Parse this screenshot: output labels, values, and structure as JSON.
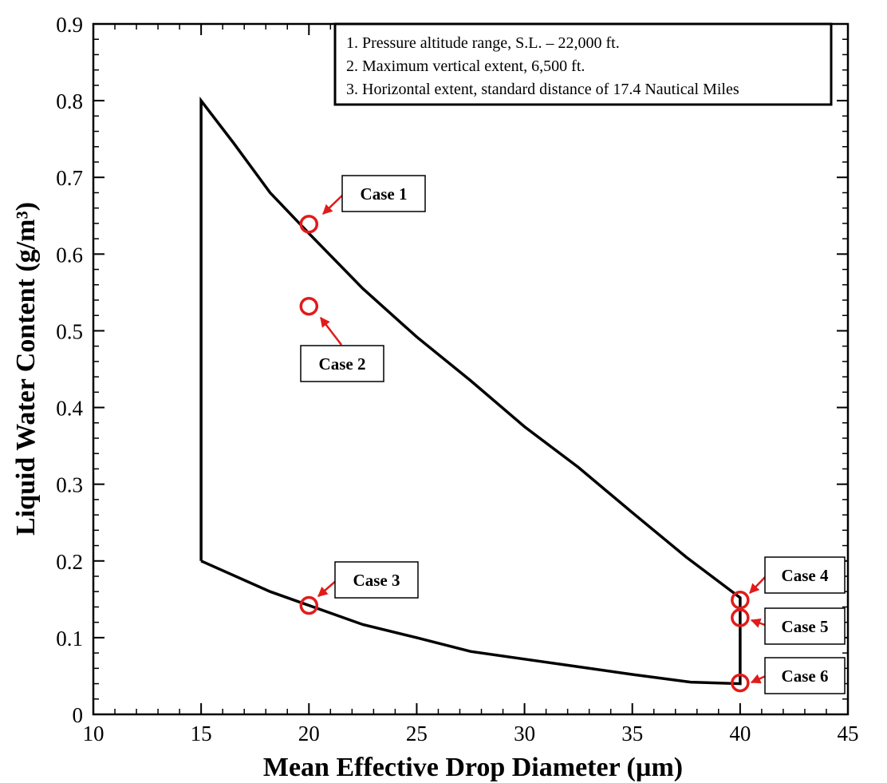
{
  "colors": {
    "line": "#000000",
    "marker": "#e11b1b",
    "arrow": "#e11b1b",
    "background": "#ffffff"
  },
  "chart_data": {
    "type": "line",
    "xlabel": "Mean Effective Drop Diameter (µm)",
    "ylabel": "Liquid Water Content (g/m³)",
    "xlim": [
      10,
      45
    ],
    "ylim": [
      0,
      0.9
    ],
    "xticks": [
      10,
      15,
      20,
      25,
      30,
      35,
      40,
      45
    ],
    "yticks": [
      0,
      0.1,
      0.2,
      0.3,
      0.4,
      0.5,
      0.6,
      0.7,
      0.8,
      0.9
    ],
    "xtick_labels": [
      "10",
      "15",
      "20",
      "25",
      "30",
      "35",
      "40",
      "45"
    ],
    "ytick_labels": [
      "0",
      "0.1",
      "0.2",
      "0.3",
      "0.4",
      "0.5",
      "0.6",
      "0.7",
      "0.8",
      "0.9"
    ],
    "xminor_step": 1,
    "yminor_step": 0.02,
    "grid": false,
    "series": [
      {
        "name": "envelope",
        "x": [
          15,
          15,
          16.5,
          18.2,
          20,
          22.5,
          25,
          27.5,
          30,
          32.5,
          35,
          37.5,
          40,
          40,
          37.7,
          35,
          32.5,
          30,
          27.5,
          25,
          22.5,
          20,
          18.2,
          15
        ],
        "y": [
          0.2,
          0.8,
          0.745,
          0.68,
          0.627,
          0.555,
          0.492,
          0.435,
          0.375,
          0.322,
          0.263,
          0.205,
          0.152,
          0.04,
          0.042,
          0.052,
          0.062,
          0.072,
          0.082,
          0.1,
          0.117,
          0.142,
          0.16,
          0.2
        ]
      }
    ],
    "points": [
      {
        "name": "Case 1",
        "x": 20,
        "y": 0.639
      },
      {
        "name": "Case 2",
        "x": 20,
        "y": 0.532
      },
      {
        "name": "Case 3",
        "x": 20,
        "y": 0.142
      },
      {
        "name": "Case 4",
        "x": 40,
        "y": 0.149
      },
      {
        "name": "Case 5",
        "x": 40,
        "y": 0.126
      },
      {
        "name": "Case 6",
        "x": 40,
        "y": 0.041
      }
    ],
    "annotations": [
      "1. Pressure altitude range, S.L. – 22,000 ft.",
      "2. Maximum vertical extent, 6,500 ft.",
      "3. Horizontal extent, standard distance of 17.4 Nautical Miles"
    ]
  }
}
